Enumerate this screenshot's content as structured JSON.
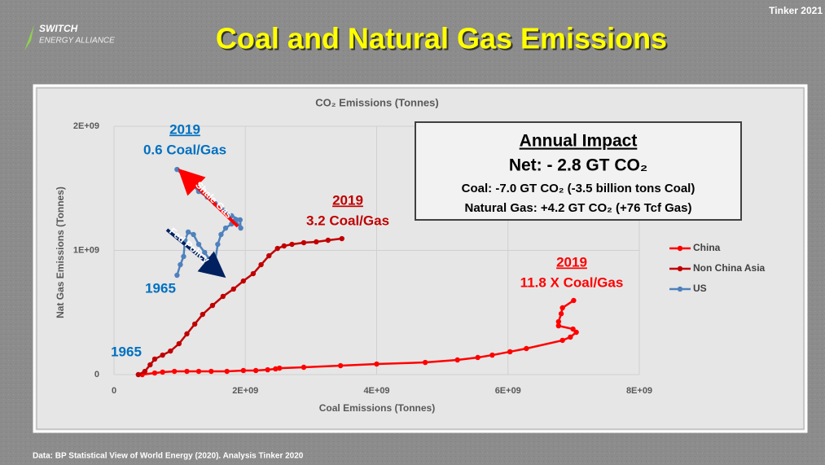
{
  "header": {
    "title": "Coal and Natural Gas Emissions",
    "logo": "SWITCH",
    "logo_sub": "ENERGY ALLIANCE",
    "credit": "Tinker 2021"
  },
  "chart_data": {
    "type": "line",
    "title": "CO₂ Emissions (Tonnes)",
    "x_label": "Coal Emissions (Tonnes)",
    "y_label": "Nat Gas Emissions (Tonnes)",
    "xlim": [
      0,
      8000000000
    ],
    "ylim": [
      0,
      2000000000
    ],
    "xticks": [
      0,
      {
        "value": 2000000000,
        "label": "2E+09"
      },
      {
        "value": 4000000000,
        "label": "4E+09"
      },
      {
        "value": 6000000000,
        "label": "6E+09"
      },
      {
        "value": 8000000000,
        "label": "8E+09"
      }
    ],
    "yticks": [
      0,
      {
        "value": 1000000000,
        "label": "1E+09"
      },
      {
        "value": 2000000000,
        "label": "2E+09"
      }
    ],
    "grid": true,
    "legend": "right",
    "series": [
      {
        "name": "China",
        "color": "#ff0000",
        "x": [
          430000000.0,
          620000000.0,
          740000000.0,
          920000000.0,
          1110000000.0,
          1290000000.0,
          1480000000.0,
          1720000000.0,
          1970000000.0,
          2160000000.0,
          2340000000.0,
          2460000000.0,
          2520000000.0,
          2890000000.0,
          3450000000.0,
          4000000000.0,
          4740000000.0,
          5230000000.0,
          5540000000.0,
          5760000000.0,
          6030000000.0,
          6280000000.0,
          6830000000.0,
          6950000000.0,
          7040000000.0,
          6990000000.0,
          6770000000.0,
          6770000000.0,
          6810000000.0,
          6830000000.0,
          7000000000.0
        ],
        "values": [
          0,
          13000000.0,
          20000000.0,
          26000000.0,
          26000000.0,
          26000000.0,
          26000000.0,
          26000000.0,
          33000000.0,
          33000000.0,
          39000000.0,
          46000000.0,
          52000000.0,
          59000000.0,
          72000000.0,
          85000000.0,
          98000000.0,
          118000000.0,
          138000000.0,
          157000000.0,
          184000000.0,
          210000000.0,
          276000000.0,
          302000000.0,
          341000000.0,
          367000000.0,
          393000000.0,
          426000000.0,
          490000000.0,
          538000000.0,
          597000000.0
        ]
      },
      {
        "name": "Non China Asia",
        "color": "#c00000",
        "x": [
          370000000.0,
          470000000.0,
          550000000.0,
          620000000.0,
          740000000.0,
          860000000.0,
          990000000.0,
          1110000000.0,
          1230000000.0,
          1350000000.0,
          1500000000.0,
          1660000000.0,
          1820000000.0,
          1970000000.0,
          2120000000.0,
          2240000000.0,
          2360000000.0,
          2490000000.0,
          2590000000.0,
          2710000000.0,
          2890000000.0,
          3080000000.0,
          3260000000.0,
          3470000000.0
        ],
        "values": [
          0,
          26000000.0,
          79000000.0,
          125000000.0,
          157000000.0,
          190000000.0,
          249000000.0,
          328000000.0,
          407000000.0,
          485000000.0,
          557000000.0,
          630000000.0,
          689000000.0,
          754000000.0,
          813000000.0,
          885000000.0,
          957000000.0,
          1016000000.0,
          1036000000.0,
          1049000000.0,
          1062000000.0,
          1069000000.0,
          1082000000.0,
          1095000000.0
        ]
      },
      {
        "name": "US",
        "color": "#4f81bd",
        "x": [
          960000000.0,
          1010000000.0,
          1060000000.0,
          1080000000.0,
          1130000000.0,
          1210000000.0,
          1290000000.0,
          1380000000.0,
          1450000000.0,
          1500000000.0,
          1540000000.0,
          1580000000.0,
          1630000000.0,
          1700000000.0,
          1790000000.0,
          1850000000.0,
          1930000000.0,
          1920000000.0,
          1790000000.0,
          1660000000.0,
          1540000000.0,
          1420000000.0,
          1290000000.0,
          1170000000.0,
          960000000.0
        ],
        "values": [
          800000000.0,
          885000000.0,
          951000000.0,
          1082000000.0,
          1148000000.0,
          1128000000.0,
          1049000000.0,
          984000000.0,
          931000000.0,
          885000000.0,
          918000000.0,
          1049000000.0,
          1128000000.0,
          1180000000.0,
          1213000000.0,
          1246000000.0,
          1180000000.0,
          1246000000.0,
          1279000000.0,
          1325000000.0,
          1377000000.0,
          1430000000.0,
          1475000000.0,
          1541000000.0,
          1652000000.0
        ]
      }
    ],
    "annotations": [
      "2019",
      "0.6 Coal/Gas",
      "Shale Gas",
      "Fed Policy",
      "1965",
      "2019",
      "3.2 Coal/Gas",
      "2019",
      "11.8 X Coal/Gas",
      "1965"
    ],
    "impact_box": {
      "title": "Annual Impact",
      "net": "Net: - 2.8 GT CO₂",
      "coal": "Coal: -7.0 GT CO₂ (-3.5 billion tons Coal)",
      "gas": "Natural Gas: +4.2 GT CO₂ (+76 Tcf Gas)"
    }
  },
  "footer": "Data: BP Statistical View of World Energy (2020). Analysis Tinker 2020"
}
